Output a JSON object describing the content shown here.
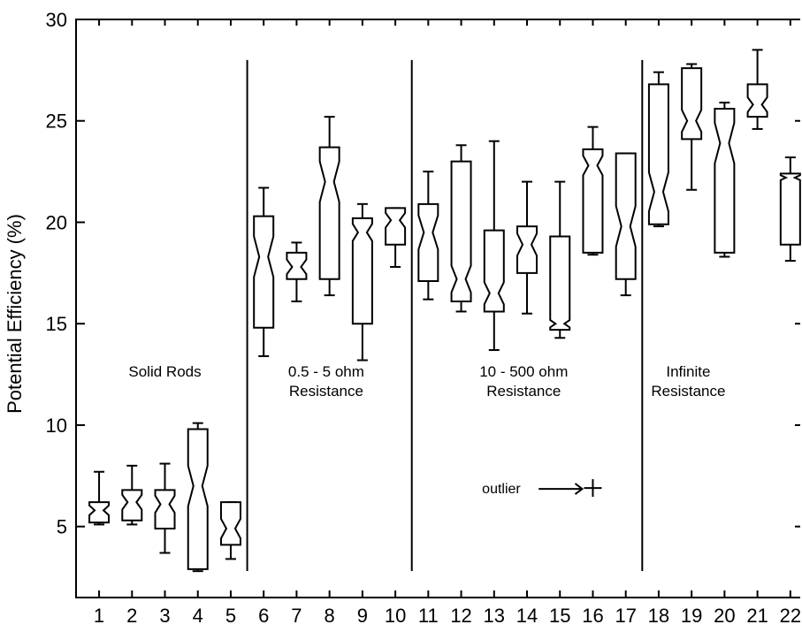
{
  "chart_data": {
    "type": "boxplot",
    "ylabel": "Potential Efficiency (%)",
    "xlabel": "",
    "title": "",
    "ylim": [
      1.5,
      30
    ],
    "yticks": [
      5,
      10,
      15,
      20,
      25,
      30
    ],
    "xlim": [
      0.3,
      22.3
    ],
    "categories": [
      "1",
      "2",
      "3",
      "4",
      "5",
      "6",
      "7",
      "8",
      "9",
      "10",
      "11",
      "12",
      "13",
      "14",
      "15",
      "16",
      "17",
      "18",
      "19",
      "20",
      "21",
      "22"
    ],
    "boxes": [
      {
        "min": 5.1,
        "q1": 5.2,
        "median": 5.8,
        "q3": 6.2,
        "max": 7.7
      },
      {
        "min": 5.1,
        "q1": 5.3,
        "median": 6.2,
        "q3": 6.8,
        "max": 8.0
      },
      {
        "min": 3.7,
        "q1": 4.9,
        "median": 6.1,
        "q3": 6.8,
        "max": 8.1
      },
      {
        "min": 2.8,
        "q1": 2.9,
        "median": 7.0,
        "q3": 9.8,
        "max": 10.1
      },
      {
        "min": 3.4,
        "q1": 4.1,
        "median": 4.9,
        "q3": 6.2,
        "max": 6.2
      },
      {
        "min": 13.4,
        "q1": 14.8,
        "median": 18.3,
        "q3": 20.3,
        "max": 21.7
      },
      {
        "min": 16.1,
        "q1": 17.2,
        "median": 17.8,
        "q3": 18.5,
        "max": 19.0
      },
      {
        "min": 16.4,
        "q1": 17.2,
        "median": 22.0,
        "q3": 23.7,
        "max": 25.2
      },
      {
        "min": 13.2,
        "q1": 15.0,
        "median": 19.5,
        "q3": 20.2,
        "max": 20.9
      },
      {
        "min": 17.8,
        "q1": 18.9,
        "median": 20.1,
        "q3": 20.7,
        "max": 20.7
      },
      {
        "min": 16.2,
        "q1": 17.1,
        "median": 19.5,
        "q3": 20.9,
        "max": 22.5
      },
      {
        "min": 15.6,
        "q1": 16.1,
        "median": 17.2,
        "q3": 23.0,
        "max": 23.8
      },
      {
        "min": 13.7,
        "q1": 15.6,
        "median": 16.5,
        "q3": 19.6,
        "max": 24.0
      },
      {
        "min": 15.5,
        "q1": 17.5,
        "median": 18.9,
        "q3": 19.8,
        "max": 22.0
      },
      {
        "min": 14.3,
        "q1": 14.7,
        "median": 15.0,
        "q3": 19.3,
        "max": 22.0
      },
      {
        "min": 18.4,
        "q1": 18.5,
        "median": 22.8,
        "q3": 23.6,
        "max": 24.7
      },
      {
        "min": 16.4,
        "q1": 17.2,
        "median": 19.8,
        "q3": 23.4,
        "max": 23.4
      },
      {
        "min": 19.8,
        "q1": 19.9,
        "median": 21.5,
        "q3": 26.8,
        "max": 27.4
      },
      {
        "min": 21.6,
        "q1": 24.1,
        "median": 25.0,
        "q3": 27.6,
        "max": 27.8
      },
      {
        "min": 18.3,
        "q1": 18.5,
        "median": 23.9,
        "q3": 25.6,
        "max": 25.9
      },
      {
        "min": 24.6,
        "q1": 25.2,
        "median": 25.8,
        "q3": 26.8,
        "max": 28.5
      },
      {
        "min": 18.1,
        "q1": 18.9,
        "median": 22.2,
        "q3": 22.4,
        "max": 23.2
      }
    ],
    "outliers": [
      {
        "x": 16.0,
        "y": 6.9
      }
    ],
    "dividers": [
      {
        "x": 5.5,
        "ytop": 28.0
      },
      {
        "x": 10.5,
        "ytop": 28.0
      },
      {
        "x": 17.5,
        "ytop": 28.0
      }
    ],
    "group_labels": [
      {
        "lines": [
          "Solid Rods"
        ],
        "x": 3.0,
        "y": 12.4
      },
      {
        "lines": [
          "0.5 - 5 ohm",
          "Resistance"
        ],
        "x": 7.9,
        "y": 12.4
      },
      {
        "lines": [
          "10 - 500 ohm",
          "Resistance"
        ],
        "x": 13.9,
        "y": 12.4
      },
      {
        "lines": [
          "Infinite",
          "Resistance"
        ],
        "x": 18.9,
        "y": 12.4
      }
    ],
    "annotation": {
      "text": "outlier",
      "x": 14.3,
      "y": 6.9
    }
  }
}
